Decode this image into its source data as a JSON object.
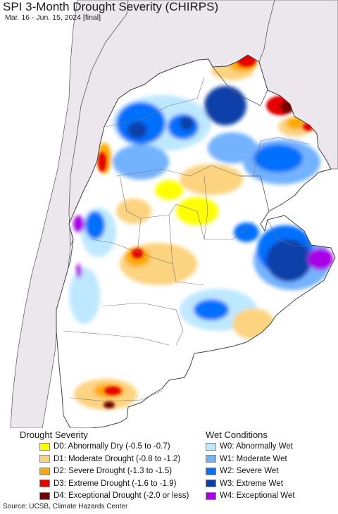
{
  "header": {
    "title": "SPI 3-Month Drought Severity (CHIRPS)",
    "subtitle": "Mar. 16 - Jun. 15, 2024 [final]"
  },
  "legend": {
    "drought_heading": "Drought Severity",
    "wet_heading": "Wet Conditions",
    "drought_items": [
      {
        "label": "D0: Abnormally Dry (-0.5 to -0.7)",
        "color": "#ffff00"
      },
      {
        "label": "D1: Moderate Drought (-0.8 to -1.2)",
        "color": "#fcd37f"
      },
      {
        "label": "D2: Severe Drought (-1.3 to -1.5)",
        "color": "#ffaa00"
      },
      {
        "label": "D3: Extreme Drought (-1.6 to -1.9)",
        "color": "#e60000"
      },
      {
        "label": "D4: Exceptional Drought (-2.0 or less)",
        "color": "#730000"
      }
    ],
    "wet_items": [
      {
        "label": "W0: Abnormally Wet",
        "color": "#bee8ff"
      },
      {
        "label": "W1: Moderate Wet",
        "color": "#73b2ff"
      },
      {
        "label": "W2: Severe Wet",
        "color": "#0070ff"
      },
      {
        "label": "W3: Extreme Wet",
        "color": "#0a3fa8"
      },
      {
        "label": "W4: Exceptional Wet",
        "color": "#a800e6"
      }
    ]
  },
  "colors": {
    "ocean": "#ffffff",
    "outside_land": "#ebe7ec",
    "region_base": "#ffffff",
    "borders": "#555555"
  },
  "footer": {
    "source": "Source: UCSB, Climate Hazards Center"
  }
}
